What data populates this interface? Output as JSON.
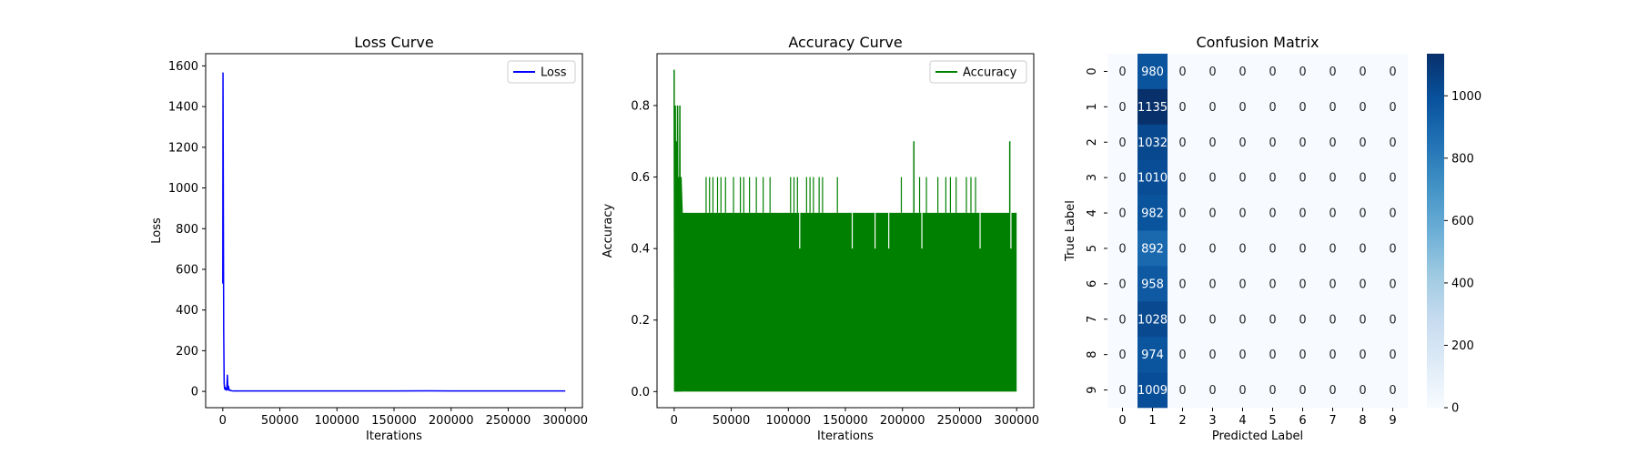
{
  "chart_data": [
    {
      "type": "line",
      "title": "Loss Curve",
      "xlabel": "Iterations",
      "ylabel": "Loss",
      "xlim": [
        -15000,
        315000
      ],
      "ylim": [
        -80,
        1660
      ],
      "xticks": [
        0,
        50000,
        100000,
        150000,
        200000,
        250000,
        300000
      ],
      "yticks": [
        0,
        200,
        400,
        600,
        800,
        1000,
        1200,
        1400,
        1600
      ],
      "legend": "top-right",
      "series": [
        {
          "name": "Loss",
          "color": "#0000ff",
          "x": [
            0,
            200,
            500,
            800,
            1200,
            1600,
            2000,
            2500,
            3000,
            3500,
            4000,
            4500,
            5000,
            5500,
            6000,
            7000,
            8000,
            10000,
            15000,
            20000,
            50000,
            100000,
            150000,
            180000,
            200000,
            250000,
            300000
          ],
          "y": [
            530,
            1565,
            900,
            300,
            40,
            12,
            20,
            8,
            15,
            6,
            80,
            10,
            25,
            5,
            8,
            4,
            3,
            2,
            2,
            2,
            2,
            2,
            2,
            3,
            2,
            2,
            2
          ]
        }
      ]
    },
    {
      "type": "line",
      "title": "Accuracy Curve",
      "xlabel": "Iterations",
      "ylabel": "Accuracy",
      "xlim": [
        -15000,
        315000
      ],
      "ylim": [
        -0.045,
        0.945
      ],
      "xticks": [
        0,
        50000,
        100000,
        150000,
        200000,
        250000,
        300000
      ],
      "yticks": [
        0.0,
        0.2,
        0.4,
        0.6,
        0.8
      ],
      "legend": "top-right",
      "series": [
        {
          "name": "Accuracy",
          "color": "#008000",
          "band": {
            "x_start": 0,
            "x_end": 300000,
            "low": 0.0,
            "high": 0.5
          },
          "early_x": [
            0,
            500,
            1000,
            1500,
            2000,
            2500,
            3000,
            3500,
            4000,
            4500,
            5000,
            5500,
            6000,
            7000
          ],
          "early_y": [
            0.9,
            0.0,
            0.8,
            0.0,
            0.7,
            0.0,
            0.8,
            0.1,
            0.6,
            0.0,
            0.8,
            0.0,
            0.6,
            0.5
          ],
          "spikes_0_6": [
            28000,
            31000,
            34000,
            38000,
            41000,
            45000,
            52000,
            58000,
            61000,
            66000,
            72000,
            78000,
            84000,
            102000,
            105000,
            108000,
            116000,
            119000,
            122000,
            127000,
            130000,
            143000,
            199000,
            215000,
            221000,
            231000,
            238000,
            242000,
            247000,
            256000,
            260000,
            264000
          ],
          "spikes_0_7": [
            210000,
            294000
          ],
          "dips_0_4": [
            110000,
            156000,
            176000,
            188000,
            217000,
            268000,
            295000
          ]
        }
      ]
    },
    {
      "type": "heatmap",
      "title": "Confusion Matrix",
      "xlabel": "Predicted Label",
      "ylabel": "True Label",
      "categories_x": [
        "0",
        "1",
        "2",
        "3",
        "4",
        "5",
        "6",
        "7",
        "8",
        "9"
      ],
      "categories_y": [
        "0",
        "1",
        "2",
        "3",
        "4",
        "5",
        "6",
        "7",
        "8",
        "9"
      ],
      "values": [
        [
          0,
          980,
          0,
          0,
          0,
          0,
          0,
          0,
          0,
          0
        ],
        [
          0,
          1135,
          0,
          0,
          0,
          0,
          0,
          0,
          0,
          0
        ],
        [
          0,
          1032,
          0,
          0,
          0,
          0,
          0,
          0,
          0,
          0
        ],
        [
          0,
          1010,
          0,
          0,
          0,
          0,
          0,
          0,
          0,
          0
        ],
        [
          0,
          982,
          0,
          0,
          0,
          0,
          0,
          0,
          0,
          0
        ],
        [
          0,
          892,
          0,
          0,
          0,
          0,
          0,
          0,
          0,
          0
        ],
        [
          0,
          958,
          0,
          0,
          0,
          0,
          0,
          0,
          0,
          0
        ],
        [
          0,
          1028,
          0,
          0,
          0,
          0,
          0,
          0,
          0,
          0
        ],
        [
          0,
          974,
          0,
          0,
          0,
          0,
          0,
          0,
          0,
          0
        ],
        [
          0,
          1009,
          0,
          0,
          0,
          0,
          0,
          0,
          0,
          0
        ]
      ],
      "colormap": "Blues",
      "colorbar_range": [
        0,
        1135
      ],
      "colorbar_ticks": [
        0,
        200,
        400,
        600,
        800,
        1000
      ]
    }
  ]
}
